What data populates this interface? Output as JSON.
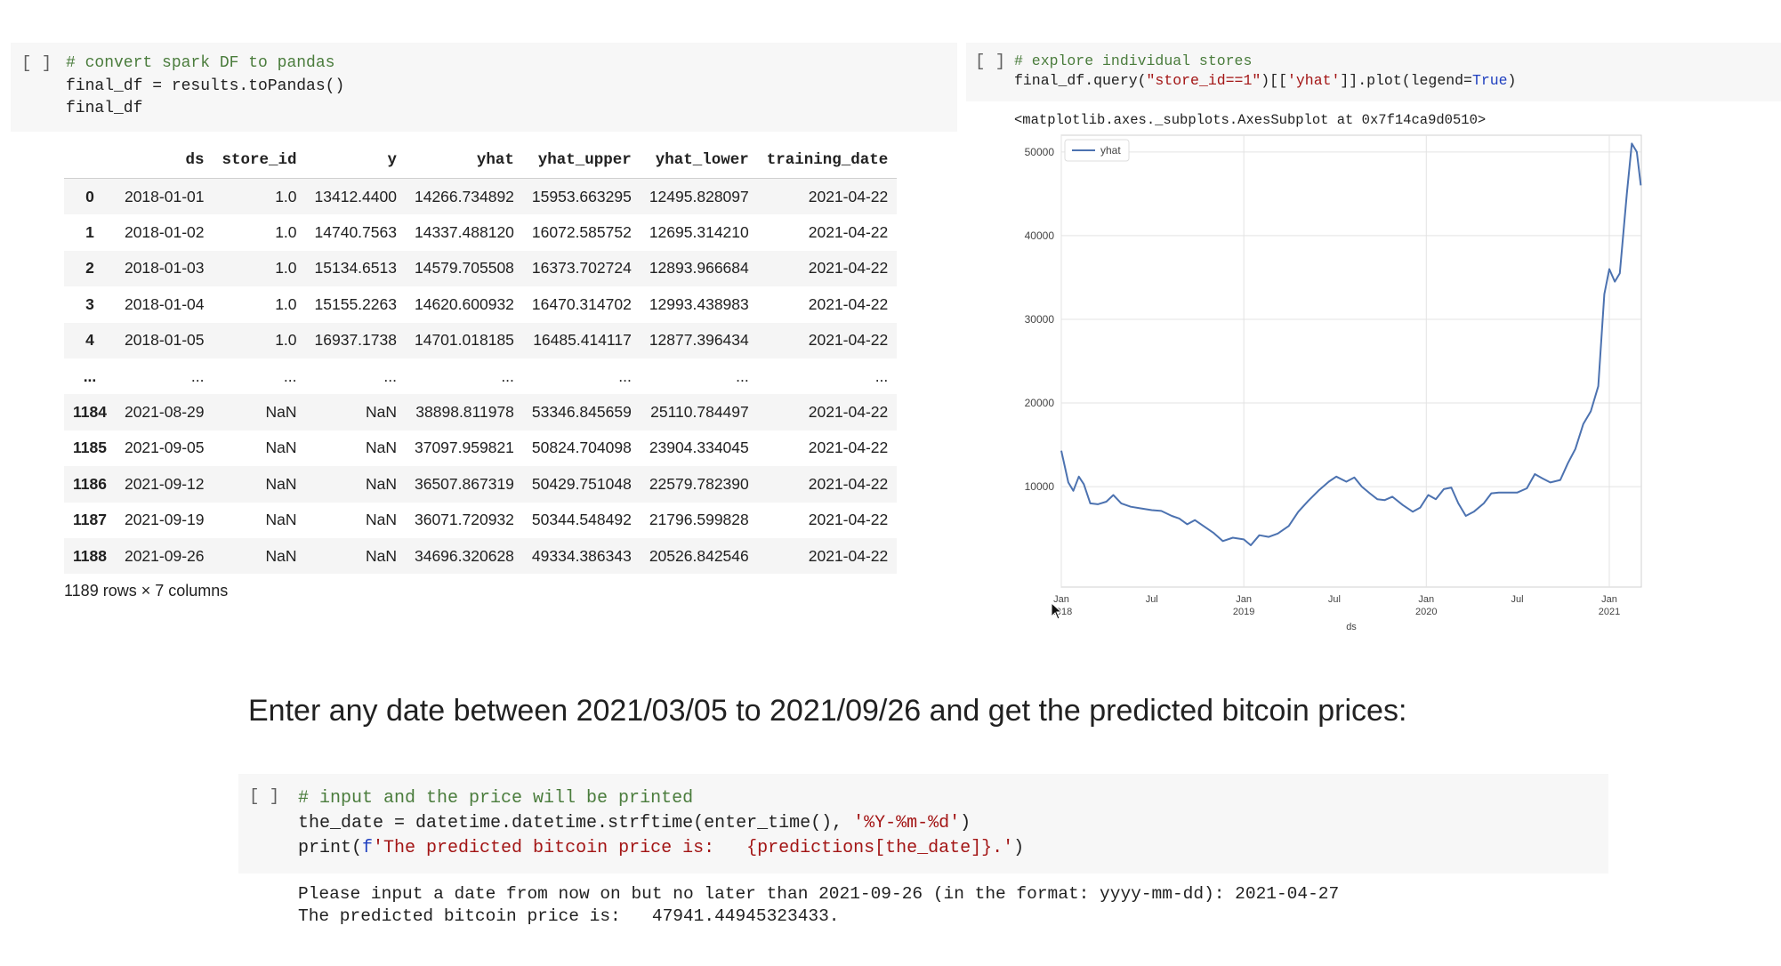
{
  "cell1": {
    "run_indicator": "[ ]",
    "comment": "# convert spark DF to pandas",
    "line2": "final_df = results.toPandas()",
    "line3": "final_df"
  },
  "dataframe": {
    "columns": [
      "ds",
      "store_id",
      "y",
      "yhat",
      "yhat_upper",
      "yhat_lower",
      "training_date"
    ],
    "rows": [
      {
        "index": "0",
        "cells": [
          "2018-01-01",
          "1.0",
          "13412.4400",
          "14266.734892",
          "15953.663295",
          "12495.828097",
          "2021-04-22"
        ]
      },
      {
        "index": "1",
        "cells": [
          "2018-01-02",
          "1.0",
          "14740.7563",
          "14337.488120",
          "16072.585752",
          "12695.314210",
          "2021-04-22"
        ]
      },
      {
        "index": "2",
        "cells": [
          "2018-01-03",
          "1.0",
          "15134.6513",
          "14579.705508",
          "16373.702724",
          "12893.966684",
          "2021-04-22"
        ]
      },
      {
        "index": "3",
        "cells": [
          "2018-01-04",
          "1.0",
          "15155.2263",
          "14620.600932",
          "16470.314702",
          "12993.438983",
          "2021-04-22"
        ]
      },
      {
        "index": "4",
        "cells": [
          "2018-01-05",
          "1.0",
          "16937.1738",
          "14701.018185",
          "16485.414117",
          "12877.396434",
          "2021-04-22"
        ]
      },
      {
        "index": "...",
        "cells": [
          "...",
          "...",
          "...",
          "...",
          "...",
          "...",
          "..."
        ]
      },
      {
        "index": "1184",
        "cells": [
          "2021-08-29",
          "NaN",
          "NaN",
          "38898.811978",
          "53346.845659",
          "25110.784497",
          "2021-04-22"
        ]
      },
      {
        "index": "1185",
        "cells": [
          "2021-09-05",
          "NaN",
          "NaN",
          "37097.959821",
          "50824.704098",
          "23904.334045",
          "2021-04-22"
        ]
      },
      {
        "index": "1186",
        "cells": [
          "2021-09-12",
          "NaN",
          "NaN",
          "36507.867319",
          "50429.751048",
          "22579.782390",
          "2021-04-22"
        ]
      },
      {
        "index": "1187",
        "cells": [
          "2021-09-19",
          "NaN",
          "NaN",
          "36071.720932",
          "50344.548492",
          "21796.599828",
          "2021-04-22"
        ]
      },
      {
        "index": "1188",
        "cells": [
          "2021-09-26",
          "NaN",
          "NaN",
          "34696.320628",
          "49334.386343",
          "20526.842546",
          "2021-04-22"
        ]
      }
    ],
    "shape_note": "1189 rows × 7 columns"
  },
  "cell2": {
    "run_indicator": "[ ]",
    "comment": "# explore individual stores",
    "code_prefix": "final_df.query(",
    "code_str1": "\"store_id==1\"",
    "code_mid": ")[[",
    "code_str2": "'yhat'",
    "code_suffix": "]].plot(legend=",
    "code_kw": "True",
    "code_end": ")",
    "output_repr": "<matplotlib.axes._subplots.AxesSubplot at 0x7f14ca9d0510>"
  },
  "chart_data": {
    "type": "line",
    "xlabel": "ds",
    "ylabel": "",
    "legend": "top-left",
    "grid": true,
    "ylim": [
      -2000,
      52000
    ],
    "y_ticks": [
      "10000",
      "20000",
      "30000",
      "40000",
      "50000"
    ],
    "x_ticks": [
      {
        "top": "Jan",
        "bottom": "2018",
        "date": "2018-01-01"
      },
      {
        "top": "Jul",
        "bottom": "",
        "date": "2018-07-01"
      },
      {
        "top": "Jan",
        "bottom": "2019",
        "date": "2019-01-01"
      },
      {
        "top": "Jul",
        "bottom": "",
        "date": "2019-07-01"
      },
      {
        "top": "Jan",
        "bottom": "2020",
        "date": "2020-01-01"
      },
      {
        "top": "Jul",
        "bottom": "",
        "date": "2020-07-01"
      },
      {
        "top": "Jan",
        "bottom": "2021",
        "date": "2021-01-01"
      }
    ],
    "series": [
      {
        "name": "yhat",
        "color": "#4c72b0",
        "points": [
          [
            "2018-01-01",
            14300
          ],
          [
            "2018-01-15",
            10500
          ],
          [
            "2018-01-25",
            9500
          ],
          [
            "2018-02-05",
            11200
          ],
          [
            "2018-02-15",
            10300
          ],
          [
            "2018-02-28",
            8000
          ],
          [
            "2018-03-15",
            7900
          ],
          [
            "2018-04-01",
            8200
          ],
          [
            "2018-04-15",
            9000
          ],
          [
            "2018-05-01",
            8000
          ],
          [
            "2018-05-20",
            7600
          ],
          [
            "2018-06-10",
            7400
          ],
          [
            "2018-07-01",
            7200
          ],
          [
            "2018-07-20",
            7100
          ],
          [
            "2018-08-10",
            6500
          ],
          [
            "2018-08-25",
            6200
          ],
          [
            "2018-09-10",
            5500
          ],
          [
            "2018-09-25",
            6000
          ],
          [
            "2018-10-10",
            5400
          ],
          [
            "2018-11-01",
            4500
          ],
          [
            "2018-11-20",
            3500
          ],
          [
            "2018-12-10",
            3900
          ],
          [
            "2019-01-01",
            3700
          ],
          [
            "2019-01-15",
            3000
          ],
          [
            "2019-02-01",
            4200
          ],
          [
            "2019-02-20",
            4000
          ],
          [
            "2019-03-10",
            4400
          ],
          [
            "2019-04-01",
            5300
          ],
          [
            "2019-04-20",
            7000
          ],
          [
            "2019-05-10",
            8300
          ],
          [
            "2019-05-30",
            9500
          ],
          [
            "2019-06-20",
            10600
          ],
          [
            "2019-07-05",
            11200
          ],
          [
            "2019-07-25",
            10600
          ],
          [
            "2019-08-10",
            11100
          ],
          [
            "2019-08-25",
            10000
          ],
          [
            "2019-09-10",
            9200
          ],
          [
            "2019-09-25",
            8500
          ],
          [
            "2019-10-10",
            8400
          ],
          [
            "2019-10-25",
            8800
          ],
          [
            "2019-11-15",
            7800
          ],
          [
            "2019-12-05",
            7000
          ],
          [
            "2019-12-20",
            7500
          ],
          [
            "2020-01-05",
            9000
          ],
          [
            "2020-01-20",
            8500
          ],
          [
            "2020-02-05",
            9700
          ],
          [
            "2020-02-20",
            9900
          ],
          [
            "2020-03-05",
            8000
          ],
          [
            "2020-03-20",
            6500
          ],
          [
            "2020-04-05",
            7000
          ],
          [
            "2020-04-25",
            8000
          ],
          [
            "2020-05-10",
            9200
          ],
          [
            "2020-05-25",
            9300
          ],
          [
            "2020-06-15",
            9300
          ],
          [
            "2020-07-01",
            9300
          ],
          [
            "2020-07-20",
            9800
          ],
          [
            "2020-08-05",
            11500
          ],
          [
            "2020-08-20",
            11000
          ],
          [
            "2020-09-05",
            10500
          ],
          [
            "2020-09-25",
            10800
          ],
          [
            "2020-10-10",
            12800
          ],
          [
            "2020-10-25",
            14500
          ],
          [
            "2020-11-10",
            17500
          ],
          [
            "2020-11-25",
            19000
          ],
          [
            "2020-12-10",
            22000
          ],
          [
            "2020-12-22",
            33000
          ],
          [
            "2021-01-01",
            36000
          ],
          [
            "2021-01-12",
            34500
          ],
          [
            "2021-01-22",
            35500
          ],
          [
            "2021-02-05",
            45000
          ],
          [
            "2021-02-15",
            51000
          ],
          [
            "2021-02-25",
            50000
          ],
          [
            "2021-03-05",
            46000
          ]
        ]
      }
    ]
  },
  "heading": "Enter any date between 2021/03/05 to 2021/09/26 and get the predicted bitcoin prices:",
  "cell3": {
    "run_indicator": "[ ]",
    "comment": "# input and the price will be printed",
    "line2_prefix": "the_date = datetime.datetime.strftime(enter_time(), ",
    "line2_str": "'%Y-%m-%d'",
    "line2_end": ")",
    "line3_print": "print(",
    "line3_f": "f",
    "line3_str": "'The predicted bitcoin price is:   {predictions[the_date]}.'",
    "line3_end": ")",
    "output_line1": "Please input a date from now on but no later than 2021-09-26 (in the format: yyyy-mm-dd): 2021-04-27",
    "output_line2": "The predicted bitcoin price is:   47941.44945323433."
  }
}
